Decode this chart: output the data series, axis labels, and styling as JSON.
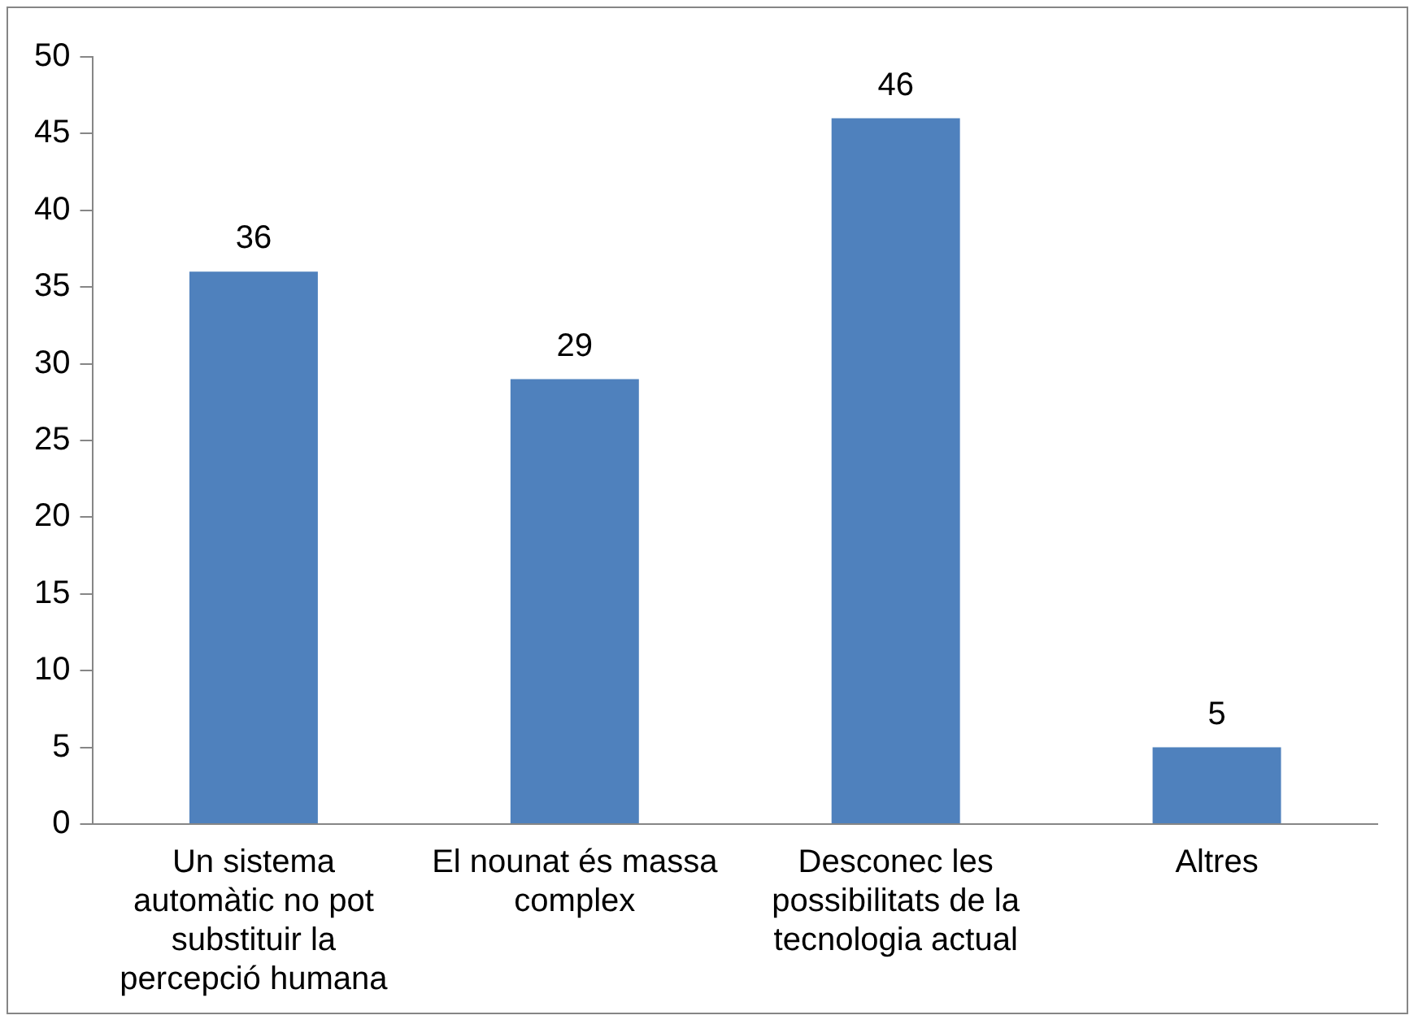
{
  "chart_data": {
    "type": "bar",
    "categories": [
      "Un sistema automàtic no pot substituir la percepció humana",
      "El nounat és massa complex",
      "Desconec les possibilitats de la tecnologia actual",
      "Altres"
    ],
    "values": [
      36,
      29,
      46,
      5
    ],
    "color": "#4f81bd",
    "ylim": [
      0,
      50
    ],
    "yticks": [
      0,
      5,
      10,
      15,
      20,
      25,
      30,
      35,
      40,
      45,
      50
    ],
    "grid": false,
    "data_labels": true
  }
}
